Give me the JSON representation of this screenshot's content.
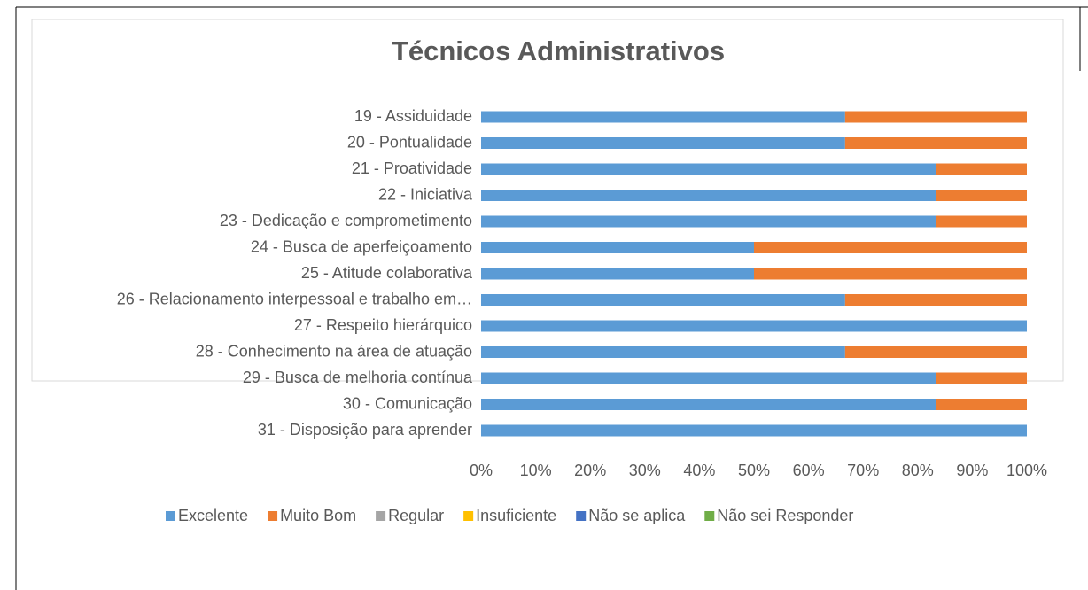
{
  "chart_data": {
    "type": "stacked_bar_horizontal",
    "title": "Técnicos Administrativos",
    "categories": [
      "19 - Assiduidade",
      "20 - Pontualidade",
      "21 - Proatividade",
      "22 - Iniciativa",
      "23 - Dedicação e comprometimento",
      "24 - Busca de aperfeiçoamento",
      "25 - Atitude colaborativa",
      "26 - Relacionamento interpessoal e trabalho em…",
      "27 - Respeito hierárquico",
      "28 - Conhecimento na área de atuação",
      "29 - Busca de melhoria contínua",
      "30 - Comunicação",
      "31 - Disposição para aprender"
    ],
    "series": [
      {
        "name": "Excelente",
        "color": "#5b9bd5",
        "values": [
          66.7,
          66.7,
          83.3,
          83.3,
          83.3,
          50,
          50,
          66.7,
          100,
          66.7,
          83.3,
          83.3,
          100
        ]
      },
      {
        "name": "Muito Bom",
        "color": "#ed7d31",
        "values": [
          33.3,
          33.3,
          16.7,
          16.7,
          16.7,
          50,
          50,
          33.3,
          0,
          33.3,
          16.7,
          16.7,
          0
        ]
      },
      {
        "name": "Regular",
        "color": "#a5a5a5",
        "values": [
          0,
          0,
          0,
          0,
          0,
          0,
          0,
          0,
          0,
          0,
          0,
          0,
          0
        ]
      },
      {
        "name": "Insuficiente",
        "color": "#ffc000",
        "values": [
          0,
          0,
          0,
          0,
          0,
          0,
          0,
          0,
          0,
          0,
          0,
          0,
          0
        ]
      },
      {
        "name": "Não se aplica",
        "color": "#4472c4",
        "values": [
          0,
          0,
          0,
          0,
          0,
          0,
          0,
          0,
          0,
          0,
          0,
          0,
          0
        ]
      },
      {
        "name": "Não sei Responder",
        "color": "#70ad47",
        "values": [
          0,
          0,
          0,
          0,
          0,
          0,
          0,
          0,
          0,
          0,
          0,
          0,
          0
        ]
      }
    ],
    "xlim": [
      0,
      100
    ],
    "xticks": [
      {
        "value": 0,
        "label": "0%"
      },
      {
        "value": 10,
        "label": "10%"
      },
      {
        "value": 20,
        "label": "20%"
      },
      {
        "value": 30,
        "label": "30%"
      },
      {
        "value": 40,
        "label": "40%"
      },
      {
        "value": 50,
        "label": "50%"
      },
      {
        "value": 60,
        "label": "60%"
      },
      {
        "value": 70,
        "label": "70%"
      },
      {
        "value": 80,
        "label": "80%"
      },
      {
        "value": 90,
        "label": "90%"
      },
      {
        "value": 100,
        "label": "100%"
      }
    ],
    "legend": "bottom"
  }
}
